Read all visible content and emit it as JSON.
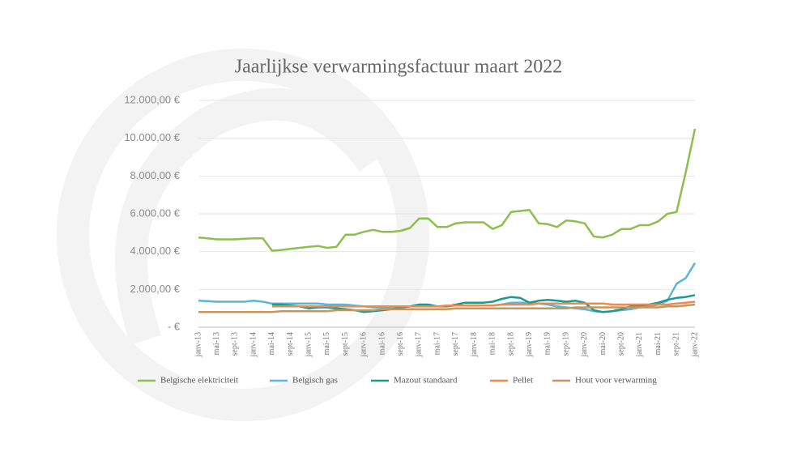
{
  "chart_data": {
    "type": "line",
    "title": "Jaarlijkse verwarmingsfactuur maart 2022",
    "categories": [
      "janv-13",
      null,
      "mai-13",
      null,
      "sept-13",
      null,
      "janv-14",
      null,
      "mai-14",
      null,
      "sept-14",
      null,
      "janv-15",
      null,
      "mai-15",
      null,
      "sept-15",
      null,
      "janv-16",
      null,
      "mai-16",
      null,
      "sept-16",
      null,
      "janv-17",
      null,
      "mai-17",
      null,
      "sept-17",
      null,
      "janv-18",
      null,
      "mai-18",
      null,
      "sept-18",
      null,
      "janv-19",
      null,
      "mai-19",
      null,
      "sept-19",
      null,
      "janv-20",
      null,
      "mai-20",
      null,
      "sept-20",
      null,
      "janv-21",
      null,
      "mai-21",
      null,
      "sept-21",
      null,
      "janv-22"
    ],
    "series": [
      {
        "name": "Belgische elektriciteit",
        "color": "#8cbf4e",
        "values": [
          4750,
          4700,
          4650,
          4650,
          4650,
          4680,
          4700,
          4700,
          4050,
          4080,
          4150,
          4200,
          4250,
          4300,
          4200,
          4250,
          4900,
          4900,
          5050,
          5150,
          5050,
          5050,
          5100,
          5250,
          5750,
          5750,
          5300,
          5300,
          5500,
          5550,
          5550,
          5550,
          5200,
          5400,
          6100,
          6150,
          6200,
          5500,
          5450,
          5300,
          5650,
          5600,
          5500,
          4800,
          4750,
          4900,
          5200,
          5200,
          5400,
          5400,
          5600,
          6000,
          6100,
          8200,
          10500
        ]
      },
      {
        "name": "Belgisch gas",
        "color": "#5ab4dc",
        "values": [
          1400,
          1380,
          1350,
          1350,
          1350,
          1350,
          1400,
          1350,
          1250,
          1250,
          1250,
          1250,
          1250,
          1250,
          1200,
          1200,
          1200,
          1150,
          1100,
          1050,
          1050,
          1050,
          1050,
          1100,
          1150,
          1150,
          1100,
          1100,
          1150,
          1150,
          1150,
          1150,
          1150,
          1200,
          1300,
          1300,
          1300,
          1250,
          1200,
          1100,
          1050,
          1000,
          950,
          850,
          800,
          850,
          900,
          950,
          1050,
          1100,
          1200,
          1400,
          2300,
          2600,
          3400
        ]
      },
      {
        "name": "Mazout standaard",
        "color": "#1a9b8f",
        "values": [
          null,
          null,
          null,
          null,
          null,
          null,
          null,
          null,
          1200,
          1200,
          1150,
          1100,
          1000,
          1050,
          1050,
          1000,
          950,
          900,
          800,
          850,
          900,
          950,
          1050,
          1100,
          1200,
          1200,
          1100,
          1100,
          1200,
          1300,
          1300,
          1300,
          1350,
          1500,
          1600,
          1550,
          1300,
          1400,
          1450,
          1400,
          1350,
          1400,
          1300,
          900,
          800,
          850,
          950,
          1100,
          1150,
          1200,
          1300,
          1450,
          1550,
          1600,
          1700
        ]
      },
      {
        "name": "Pellet",
        "color": "#f08a4b",
        "values": [
          null,
          null,
          null,
          null,
          null,
          null,
          null,
          null,
          1100,
          1100,
          1100,
          1100,
          1100,
          1100,
          1100,
          1100,
          1100,
          1100,
          1100,
          1100,
          1100,
          1100,
          1100,
          1100,
          1100,
          1100,
          1100,
          1150,
          1150,
          1150,
          1150,
          1150,
          1150,
          1200,
          1200,
          1200,
          1200,
          1250,
          1250,
          1250,
          1250,
          1250,
          1250,
          1250,
          1250,
          1200,
          1200,
          1200,
          1200,
          1200,
          1200,
          1200,
          1250,
          1300,
          1350
        ]
      },
      {
        "name": "Hout voor verwarming",
        "color": "#c8955e",
        "values": [
          800,
          800,
          800,
          800,
          800,
          800,
          800,
          800,
          800,
          850,
          850,
          850,
          850,
          850,
          850,
          900,
          900,
          900,
          900,
          900,
          950,
          950,
          950,
          950,
          950,
          950,
          950,
          950,
          1000,
          1000,
          1000,
          1000,
          1000,
          1000,
          1000,
          1000,
          1000,
          1000,
          1000,
          1000,
          1000,
          1050,
          1050,
          1050,
          1050,
          1050,
          1050,
          1050,
          1050,
          1050,
          1050,
          1100,
          1100,
          1150,
          1200
        ]
      }
    ],
    "ylim": [
      0,
      12000
    ],
    "yticks": [
      {
        "value": 0,
        "label": "-   €"
      },
      {
        "value": 2000,
        "label": "2.000,00 €"
      },
      {
        "value": 4000,
        "label": "4.000,00 €"
      },
      {
        "value": 6000,
        "label": "6.000,00 €"
      },
      {
        "value": 8000,
        "label": "8.000,00 €"
      },
      {
        "value": 10000,
        "label": "10.000,00 €"
      },
      {
        "value": 12000,
        "label": "12.000,00 €"
      }
    ],
    "grid": true
  }
}
